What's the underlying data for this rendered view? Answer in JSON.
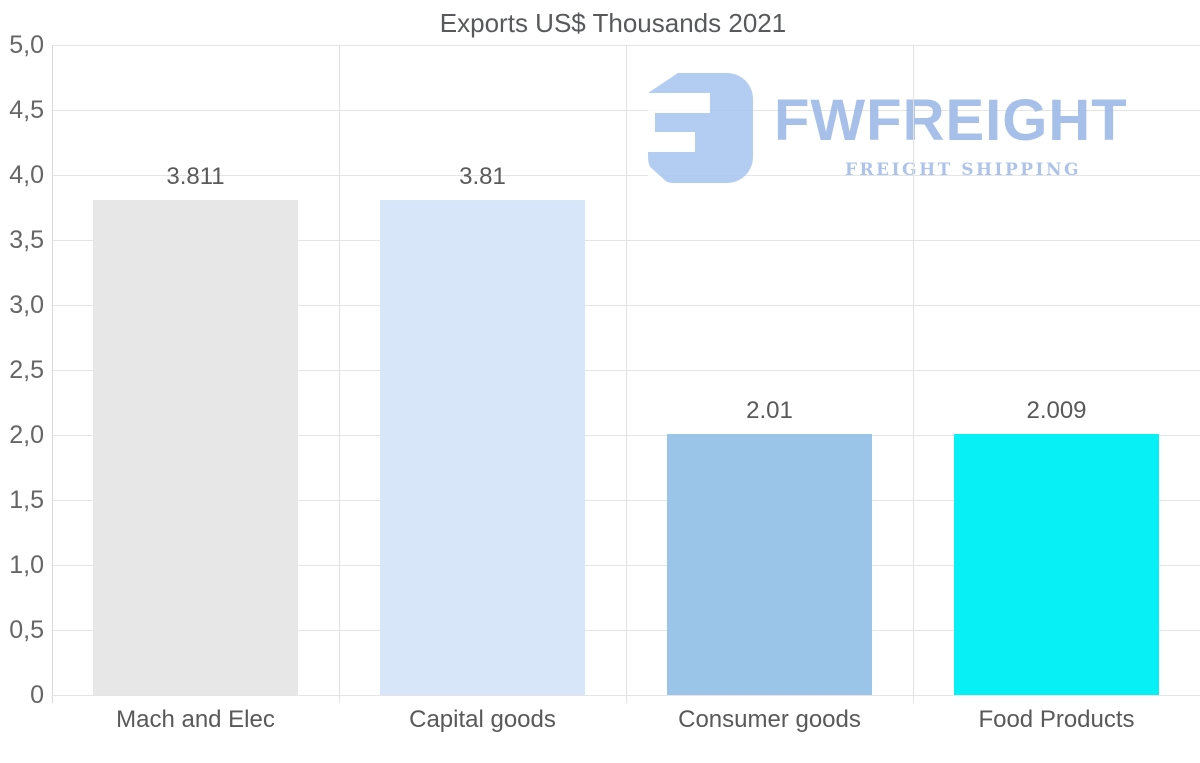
{
  "title": "Exports US$ Thousands 2021",
  "chart_data": {
    "type": "bar",
    "title": "Exports US$ Thousands 2021",
    "categories": [
      "Mach and Elec",
      "Capital goods",
      "Consumer goods",
      "Food Products"
    ],
    "values": [
      3.811,
      3.81,
      2.01,
      2.009
    ],
    "value_labels": [
      "3.811",
      "3.81",
      "2.01",
      "2.009"
    ],
    "bar_colors": [
      "#e7e7e7",
      "#d7e6f8",
      "#9ac4e8",
      "#06f0f5"
    ],
    "xlabel": "",
    "ylabel": "",
    "ylim": [
      0,
      5
    ],
    "ytick_step": 0.5,
    "ytick_labels": [
      "5,0",
      "4,5",
      "4,0",
      "3,5",
      "3,0",
      "2,5",
      "2,0",
      "1,5",
      "1,0",
      "0,5",
      "0"
    ],
    "grid": "horizontal gridlines + vertical category separators",
    "legend": "none",
    "decimal_separator_axis": ",",
    "decimal_separator_labels": "."
  },
  "watermark": {
    "brand": "FWFREIGHT",
    "tagline": "FREIGHT SHIPPING",
    "icon": "fwfreight-logo-icon",
    "brand_color": "#9cb8e8",
    "tagline_color": "#a3bbe8",
    "icon_color": "#a9c6f0"
  },
  "colors": {
    "grid": "#e5e5e5",
    "axis_line": "#d8d8d8",
    "title_text": "#58595b",
    "tick_text": "#666666",
    "label_text": "#595959",
    "background": "#ffffff"
  }
}
